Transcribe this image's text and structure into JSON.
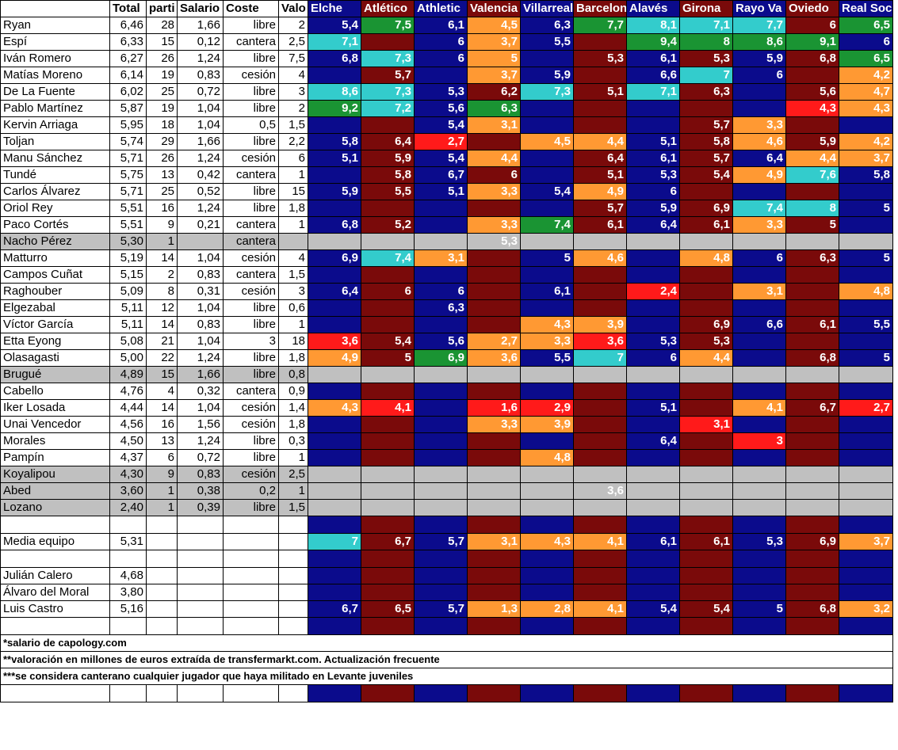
{
  "headers": {
    "name": "",
    "total": "Total",
    "partidos": "parti",
    "salario": "Salario",
    "coste": "Coste",
    "valor": "Valo",
    "teams": [
      "Elche",
      "Atlético",
      "Athletic",
      "Valencia",
      "Villarreal",
      "Barcelona",
      "Alavés",
      "Girona",
      "Rayo Va",
      "Oviedo",
      "Real Soc"
    ]
  },
  "colors": {
    "blue": "#0b0b8c",
    "maroon": "#7a0a0a",
    "orange": "#ff9933",
    "teal": "#33cccc",
    "green": "#1a9433",
    "red": "#ff1a1a",
    "gray": "#c0c0c0"
  },
  "players": [
    {
      "name": "Ryan",
      "total": "6,46",
      "partidos": "28",
      "salario": "1,66",
      "coste": "libre",
      "valor": "2",
      "ratings": [
        "5,4",
        "7,5",
        "6,1",
        "4,5",
        "6,3",
        "7,7",
        "8,1",
        "7,1",
        "7,7",
        "6",
        "6,5"
      ]
    },
    {
      "name": "Espí",
      "total": "6,33",
      "partidos": "15",
      "salario": "0,12",
      "coste": "cantera",
      "valor": "2,5",
      "ratings": [
        "7,1",
        "",
        "6",
        "3,7",
        "5,5",
        "",
        "9,4",
        "8",
        "8,6",
        "9,1",
        "6"
      ]
    },
    {
      "name": "Iván Romero",
      "total": "6,27",
      "partidos": "26",
      "salario": "1,24",
      "coste": "libre",
      "valor": "7,5",
      "ratings": [
        "6,8",
        "7,3",
        "6",
        "5",
        "",
        "5,3",
        "6,1",
        "5,3",
        "5,9",
        "6,8",
        "6,5"
      ]
    },
    {
      "name": "Matías Moreno",
      "total": "6,14",
      "partidos": "19",
      "salario": "0,83",
      "coste": "cesión",
      "valor": "4",
      "ratings": [
        "",
        "5,7",
        "",
        "3,7",
        "5,9",
        "",
        "6,6",
        "7",
        "6",
        "",
        "4,2"
      ]
    },
    {
      "name": "De La Fuente",
      "total": "6,02",
      "partidos": "25",
      "salario": "0,72",
      "coste": "libre",
      "valor": "3",
      "ratings": [
        "8,6",
        "7,3",
        "5,3",
        "6,2",
        "7,3",
        "5,1",
        "7,1",
        "6,3",
        "",
        "5,6",
        "4,7"
      ]
    },
    {
      "name": "Pablo Martínez",
      "total": "5,87",
      "partidos": "19",
      "salario": "1,04",
      "coste": "libre",
      "valor": "2",
      "ratings": [
        "9,2",
        "7,2",
        "5,6",
        "6,3",
        "",
        "",
        "",
        "",
        "",
        "4,3",
        "4,3"
      ]
    },
    {
      "name": "Kervin Arriaga",
      "total": "5,95",
      "partidos": "18",
      "salario": "1,04",
      "coste": "0,5",
      "valor": "1,5",
      "ratings": [
        "",
        "",
        "5,4",
        "3,1",
        "",
        "",
        "",
        "5,7",
        "3,3",
        "",
        ""
      ]
    },
    {
      "name": "Toljan",
      "total": "5,74",
      "partidos": "29",
      "salario": "1,66",
      "coste": "libre",
      "valor": "2,2",
      "ratings": [
        "5,8",
        "6,4",
        "2,7",
        "",
        "4,5",
        "4,4",
        "5,1",
        "5,8",
        "4,6",
        "5,9",
        "4,2"
      ]
    },
    {
      "name": "Manu Sánchez",
      "total": "5,71",
      "partidos": "26",
      "salario": "1,24",
      "coste": "cesión",
      "valor": "6",
      "ratings": [
        "5,1",
        "5,9",
        "5,4",
        "4,4",
        "",
        "6,4",
        "6,1",
        "5,7",
        "6,4",
        "4,4",
        "3,7"
      ]
    },
    {
      "name": "Tundé",
      "total": "5,75",
      "partidos": "13",
      "salario": "0,42",
      "coste": "cantera",
      "valor": "1",
      "ratings": [
        "",
        "5,8",
        "6,7",
        "6",
        "",
        "5,1",
        "5,3",
        "5,4",
        "4,9",
        "7,6",
        "5,8"
      ]
    },
    {
      "name": "Carlos Álvarez",
      "total": "5,71",
      "partidos": "25",
      "salario": "0,52",
      "coste": "libre",
      "valor": "15",
      "ratings": [
        "5,9",
        "5,5",
        "5,1",
        "3,3",
        "5,4",
        "4,9",
        "6",
        "",
        "",
        "",
        ""
      ]
    },
    {
      "name": "Oriol Rey",
      "total": "5,51",
      "partidos": "16",
      "salario": "1,24",
      "coste": "libre",
      "valor": "1,8",
      "ratings": [
        "",
        "",
        "",
        "",
        "",
        "5,7",
        "5,9",
        "6,9",
        "7,4",
        "8",
        "5"
      ]
    },
    {
      "name": "Paco Cortés",
      "total": "5,51",
      "partidos": "9",
      "salario": "0,21",
      "coste": "cantera",
      "valor": "1",
      "ratings": [
        "6,8",
        "5,2",
        "",
        "3,3",
        "7,4",
        "6,1",
        "6,4",
        "6,1",
        "3,3",
        "5",
        ""
      ]
    },
    {
      "name": "Nacho Pérez",
      "total": "5,30",
      "partidos": "1",
      "salario": "",
      "coste": "cantera",
      "valor": "",
      "ratings": [
        "",
        "",
        "",
        "5,3",
        "",
        "",
        "",
        "",
        "",
        "",
        ""
      ]
    },
    {
      "name": "Matturro",
      "total": "5,19",
      "partidos": "14",
      "salario": "1,04",
      "coste": "cesión",
      "valor": "4",
      "ratings": [
        "6,9",
        "7,4",
        "3,1",
        "",
        "5",
        "4,6",
        "",
        "4,8",
        "6",
        "6,3",
        "5"
      ]
    },
    {
      "name": "Campos Cuñat",
      "total": "5,15",
      "partidos": "2",
      "salario": "0,83",
      "coste": "cantera",
      "valor": "1,5",
      "ratings": [
        "",
        "",
        "",
        "",
        "",
        "",
        "",
        "",
        "",
        "",
        ""
      ]
    },
    {
      "name": "Raghouber",
      "total": "5,09",
      "partidos": "8",
      "salario": "0,31",
      "coste": "cesión",
      "valor": "3",
      "ratings": [
        "6,4",
        "6",
        "6",
        "",
        "6,1",
        "",
        "2,4",
        "",
        "3,1",
        "",
        "4,8"
      ]
    },
    {
      "name": "Elgezabal",
      "total": "5,11",
      "partidos": "12",
      "salario": "1,04",
      "coste": "libre",
      "valor": "0,6",
      "ratings": [
        "",
        "",
        "6,3",
        "",
        "",
        "",
        "",
        "",
        "",
        "",
        ""
      ]
    },
    {
      "name": "Víctor García",
      "total": "5,11",
      "partidos": "14",
      "salario": "0,83",
      "coste": "libre",
      "valor": "1",
      "ratings": [
        "",
        "",
        "",
        "",
        "4,3",
        "3,9",
        "",
        "6,9",
        "6,6",
        "6,1",
        "5,5"
      ]
    },
    {
      "name": "Etta Eyong",
      "total": "5,08",
      "partidos": "21",
      "salario": "1,04",
      "coste": "3",
      "valor": "18",
      "ratings": [
        "3,6",
        "5,4",
        "5,6",
        "2,7",
        "3,3",
        "3,6",
        "5,3",
        "5,3",
        "",
        "",
        ""
      ]
    },
    {
      "name": "Olasagasti",
      "total": "5,00",
      "partidos": "22",
      "salario": "1,24",
      "coste": "libre",
      "valor": "1,8",
      "ratings": [
        "4,9",
        "5",
        "6,9",
        "3,6",
        "5,5",
        "7",
        "6",
        "4,4",
        "",
        "6,8",
        "5"
      ]
    },
    {
      "name": "Brugué",
      "total": "4,89",
      "partidos": "15",
      "salario": "1,66",
      "coste": "libre",
      "valor": "0,8",
      "ratings": [
        "",
        "",
        "",
        "",
        "",
        "",
        "",
        "",
        "",
        "",
        ""
      ]
    },
    {
      "name": "Cabello",
      "total": "4,76",
      "partidos": "4",
      "salario": "0,32",
      "coste": "cantera",
      "valor": "0,9",
      "ratings": [
        "",
        "",
        "",
        "",
        "",
        "",
        "",
        "",
        "",
        "",
        ""
      ]
    },
    {
      "name": "Iker Losada",
      "total": "4,44",
      "partidos": "14",
      "salario": "1,04",
      "coste": "cesión",
      "valor": "1,4",
      "ratings": [
        "4,3",
        "4,1",
        "",
        "1,6",
        "2,9",
        "",
        "5,1",
        "",
        "4,1",
        "6,7",
        "2,7"
      ]
    },
    {
      "name": "Unai Vencedor",
      "total": "4,56",
      "partidos": "16",
      "salario": "1,56",
      "coste": "cesión",
      "valor": "1,8",
      "ratings": [
        "",
        "",
        "",
        "3,3",
        "3,9",
        "",
        "",
        "3,1",
        "",
        "",
        ""
      ]
    },
    {
      "name": "Morales",
      "total": "4,50",
      "partidos": "13",
      "salario": "1,24",
      "coste": "libre",
      "valor": "0,3",
      "ratings": [
        "",
        "",
        "",
        "",
        "",
        "",
        "6,4",
        "",
        "3",
        "",
        ""
      ]
    },
    {
      "name": "Pampín",
      "total": "4,37",
      "partidos": "6",
      "salario": "0,72",
      "coste": "libre",
      "valor": "1",
      "ratings": [
        "",
        "",
        "",
        "",
        "4,8",
        "",
        "",
        "",
        "",
        "",
        ""
      ]
    },
    {
      "name": "Koyalipou",
      "total": "4,30",
      "partidos": "9",
      "salario": "0,83",
      "coste": "cesión",
      "valor": "2,5",
      "ratings": [
        "",
        "",
        "",
        "",
        "",
        "",
        "",
        "",
        "",
        "",
        ""
      ]
    },
    {
      "name": "Abed",
      "total": "3,60",
      "partidos": "1",
      "salario": "0,38",
      "coste": "0,2",
      "valor": "1",
      "ratings": [
        "",
        "",
        "",
        "",
        "",
        "3,6",
        "",
        "",
        "",
        "",
        ""
      ]
    },
    {
      "name": "Lozano",
      "total": "2,40",
      "partidos": "1",
      "salario": "0,39",
      "coste": "libre",
      "valor": "1,5",
      "ratings": [
        "",
        "",
        "",
        "",
        "",
        "",
        "",
        "",
        "",
        "",
        ""
      ]
    }
  ],
  "media": {
    "name": "Media equipo",
    "total": "5,31",
    "ratings": [
      "7",
      "6,7",
      "5,7",
      "3,1",
      "4,3",
      "4,1",
      "6,1",
      "6,1",
      "5,3",
      "6,9",
      "3,7"
    ]
  },
  "extra": [
    {
      "name": "Julián Calero",
      "total": "4,68"
    },
    {
      "name": "Álvaro del Moral",
      "total": "3,80"
    },
    {
      "name": "Luis Castro",
      "total": "5,16",
      "ratings": [
        "6,7",
        "6,5",
        "5,7",
        "1,3",
        "2,8",
        "4,1",
        "5,4",
        "5,4",
        "5",
        "6,8",
        "3,2"
      ]
    }
  ],
  "notes": [
    "*salario de capology.com",
    "**valoración en millones de euros extraída de transfermarkt.com. Actualización frecuente",
    "***se considera canterano cualquier jugador que haya militado en Levante juveniles"
  ]
}
